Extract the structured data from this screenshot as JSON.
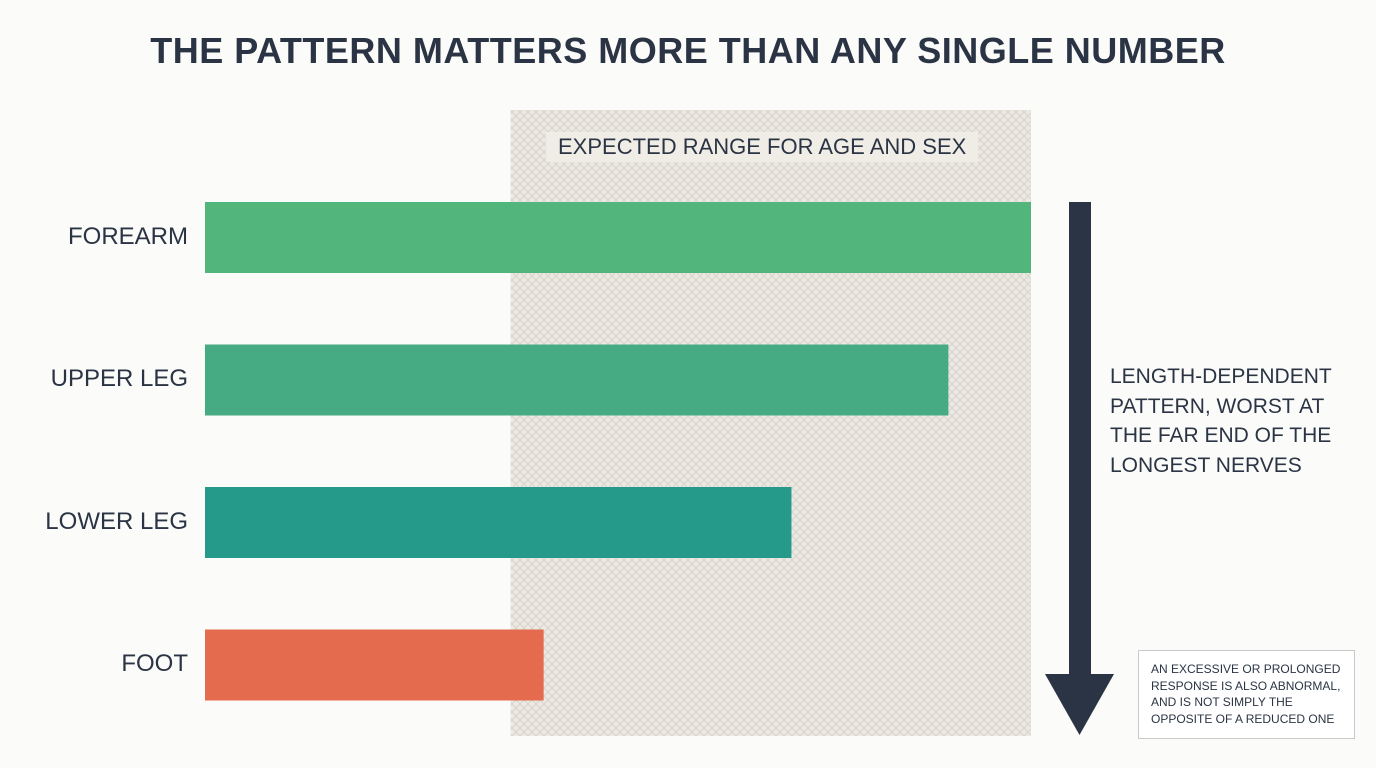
{
  "title": "THE PATTERN MATTERS MORE THAN ANY SINGLE NUMBER",
  "annotations": {
    "gradient_note": "LENGTH-DEPENDENT PATTERN, WORST AT THE FAR END OF THE LONGEST NERVES",
    "footnote": "AN EXCESSIVE OR PROLONGED RESPONSE IS ALSO ABNORMAL, AND IS NOT SIMPLY THE OPPOSITE OF A REDUCED ONE"
  },
  "colors": {
    "title": "#2b3444",
    "band": "#ebe9e1",
    "band_hatch": "#d4d1c9",
    "arrow": "#2b3444"
  },
  "chart_data": {
    "type": "bar",
    "orientation": "horizontal",
    "categories": [
      "FOREARM",
      "UPPER LEG",
      "LOWER LEG",
      "FOOT"
    ],
    "values": [
      100,
      90,
      71,
      41
    ],
    "bar_colors": [
      "#52b57b",
      "#46ab83",
      "#269a8a",
      "#e56b4f"
    ],
    "xlim": [
      0,
      100
    ],
    "reference_band": {
      "label": "EXPECTED RANGE FOR AGE AND SEX",
      "range": [
        37,
        100
      ]
    },
    "axis_visible": false,
    "grid": false,
    "legend": "none"
  }
}
